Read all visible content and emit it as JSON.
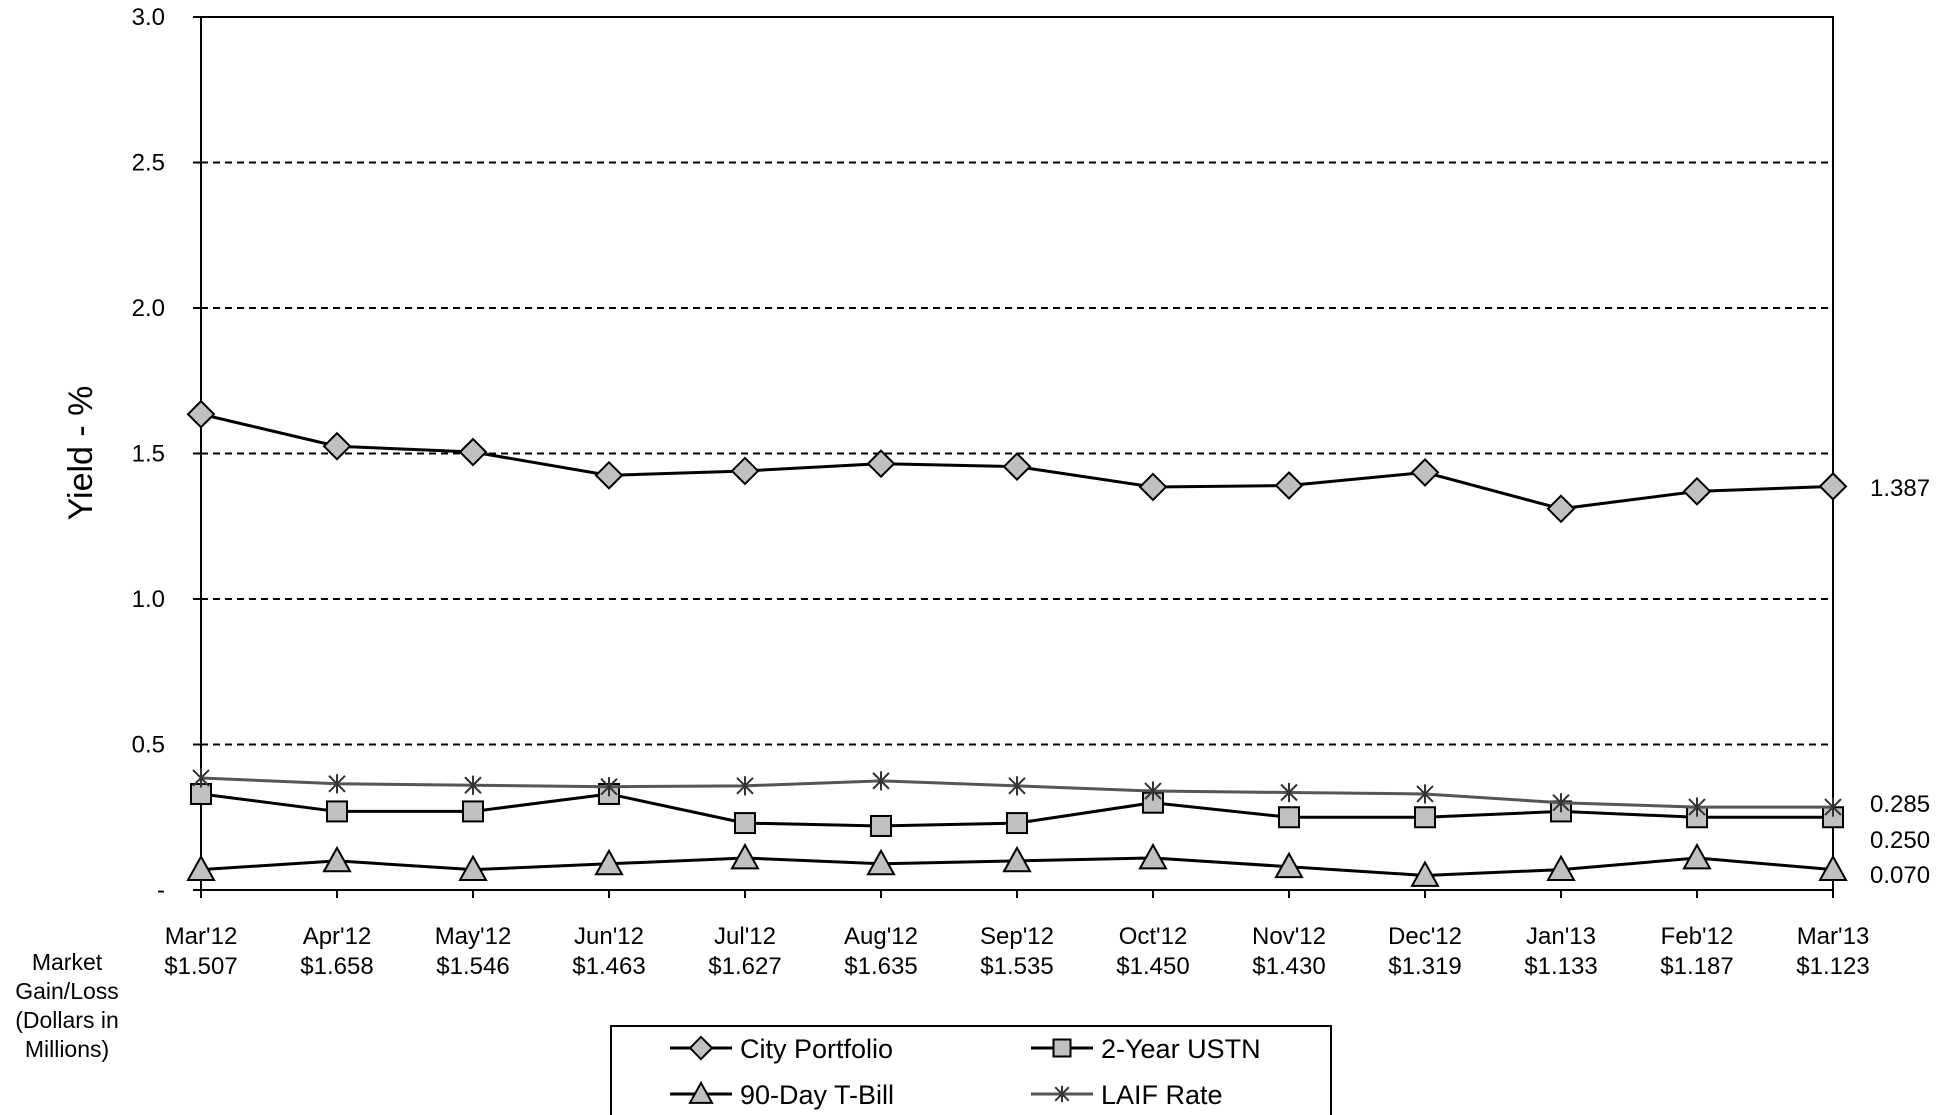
{
  "chart_data": {
    "type": "line",
    "ylabel": "Yield - %",
    "ylim": [
      0,
      3.0
    ],
    "y_ticks": [
      "-",
      "0.5",
      "1.0",
      "1.5",
      "2.0",
      "2.5",
      "3.0"
    ],
    "y_tick_values": [
      0,
      0.5,
      1.0,
      1.5,
      2.0,
      2.5,
      3.0
    ],
    "grid": "dashed horizontal",
    "categories": [
      "Mar'12",
      "Apr'12",
      "May'12",
      "Jun'12",
      "Jul'12",
      "Aug'12",
      "Sep'12",
      "Oct'12",
      "Nov'12",
      "Dec'12",
      "Jan'13",
      "Feb'12",
      "Mar'13"
    ],
    "market_gain_loss_label": [
      "Market",
      "Gain/Loss",
      "(Dollars in",
      "Millions)"
    ],
    "market_gain_loss": [
      "$1.507",
      "$1.658",
      "$1.546",
      "$1.463",
      "$1.627",
      "$1.635",
      "$1.535",
      "$1.450",
      "$1.430",
      "$1.319",
      "$1.133",
      "$1.187",
      "$1.123"
    ],
    "series": [
      {
        "name": "City Portfolio",
        "marker": "diamond",
        "line_color": "#000000",
        "values": [
          1.635,
          1.525,
          1.505,
          1.425,
          1.44,
          1.465,
          1.455,
          1.385,
          1.39,
          1.435,
          1.31,
          1.37,
          1.387
        ]
      },
      {
        "name": "2-Year USTN",
        "marker": "square",
        "line_color": "#000000",
        "values": [
          0.33,
          0.27,
          0.27,
          0.33,
          0.23,
          0.22,
          0.23,
          0.3,
          0.25,
          0.25,
          0.27,
          0.25,
          0.25
        ]
      },
      {
        "name": "90-Day T-Bill",
        "marker": "triangle",
        "line_color": "#000000",
        "values": [
          0.07,
          0.1,
          0.07,
          0.09,
          0.11,
          0.09,
          0.1,
          0.11,
          0.08,
          0.05,
          0.07,
          0.11,
          0.07
        ]
      },
      {
        "name": "LAIF Rate",
        "marker": "asterisk",
        "line_color": "#555555",
        "values": [
          0.385,
          0.365,
          0.36,
          0.355,
          0.358,
          0.375,
          0.358,
          0.34,
          0.335,
          0.33,
          0.3,
          0.285,
          0.285
        ]
      }
    ],
    "end_labels": [
      "1.387",
      "0.285",
      "0.250",
      "0.070"
    ],
    "legend_position": "bottom-center",
    "colors": {
      "marker_fill": "#c0c0c0",
      "axis": "#000000",
      "laif_line": "#555555"
    }
  }
}
